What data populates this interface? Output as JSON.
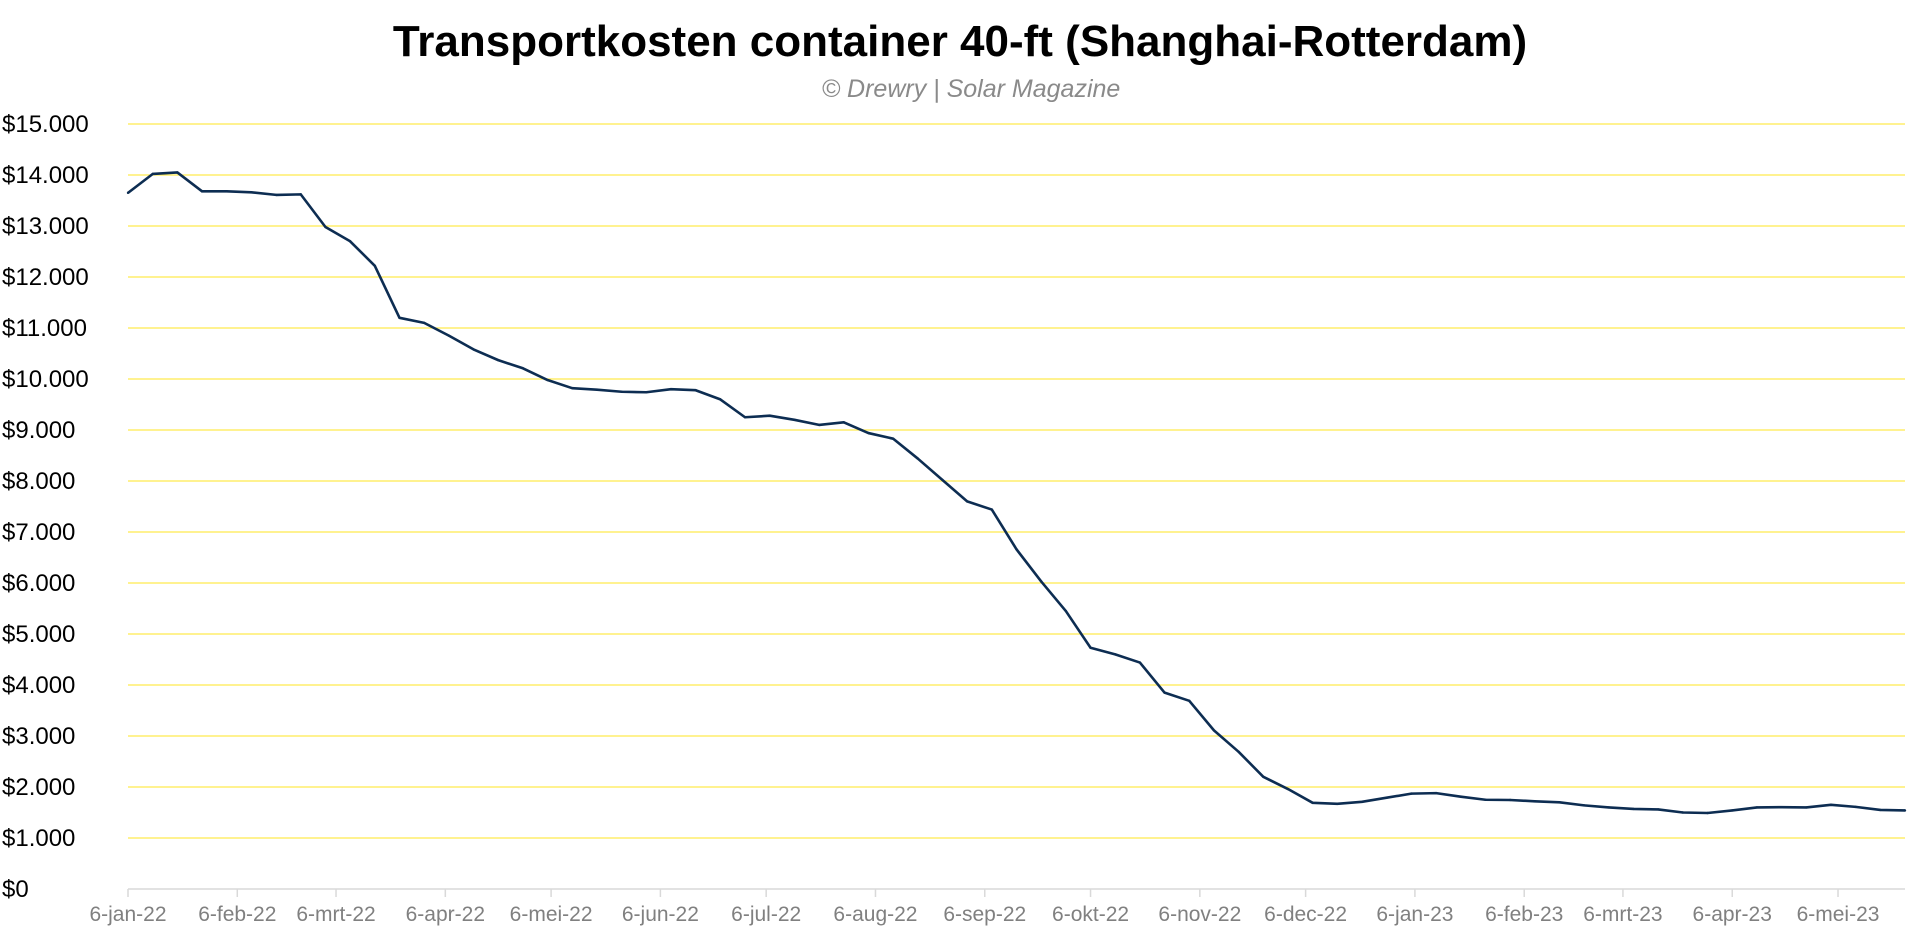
{
  "chart_data": {
    "type": "line",
    "title": "Transportkosten container 40-ft (Shanghai-Rotterdam)",
    "subtitle": "© Drewry | Solar Magazine",
    "xlabel": "",
    "ylabel": "",
    "ylim": [
      0,
      15000
    ],
    "y_ticks": [
      0,
      1000,
      2000,
      3000,
      4000,
      5000,
      6000,
      7000,
      8000,
      9000,
      10000,
      11000,
      12000,
      13000,
      14000,
      15000
    ],
    "y_tick_labels": [
      "$0",
      "$1.000",
      "$2.000",
      "$3.000",
      "$4.000",
      "$5.000",
      "$6.000",
      "$7.000",
      "$8.000",
      "$9.000",
      "$10.000",
      "$11.000",
      "$12.000",
      "$13.000",
      "$14.000",
      "$15.000"
    ],
    "x_unit": "days since 6-jan-22 (weekly observations)",
    "x_ticks": [
      0,
      31,
      59,
      90,
      120,
      151,
      181,
      212,
      243,
      273,
      304,
      334,
      365,
      396,
      424,
      455,
      485
    ],
    "x_tick_labels": [
      "6-jan-22",
      "6-feb-22",
      "6-mrt-22",
      "6-apr-22",
      "6-mei-22",
      "6-jun-22",
      "6-jul-22",
      "6-aug-22",
      "6-sep-22",
      "6-okt-22",
      "6-nov-22",
      "6-dec-22",
      "6-jan-23",
      "6-feb-23",
      "6-mrt-23",
      "6-apr-23",
      "6-mei-23"
    ],
    "xlim": [
      0,
      504
    ],
    "grid": true,
    "series": [
      {
        "name": "Transportkosten",
        "color": "#0d2d52",
        "interval_days": 7,
        "values": [
          13650,
          14020,
          14050,
          13680,
          13680,
          13660,
          13610,
          13620,
          12980,
          12700,
          12220,
          11200,
          11100,
          10850,
          10580,
          10370,
          10210,
          9980,
          9820,
          9790,
          9750,
          9740,
          9800,
          9780,
          9600,
          9250,
          9280,
          9200,
          9100,
          9150,
          8940,
          8830,
          8440,
          8020,
          7600,
          7440,
          6660,
          6030,
          5450,
          4730,
          4600,
          4440,
          3850,
          3690,
          3110,
          2690,
          2200,
          1960,
          1690,
          1670,
          1710,
          1790,
          1870,
          1880,
          1810,
          1750,
          1745,
          1720,
          1700,
          1640,
          1600,
          1570,
          1560,
          1500,
          1490,
          1540,
          1600,
          1605,
          1600,
          1650,
          1610,
          1550,
          1540
        ]
      }
    ],
    "colors": {
      "grid": "#ffe94d",
      "axis": "#d9d9d9"
    }
  }
}
